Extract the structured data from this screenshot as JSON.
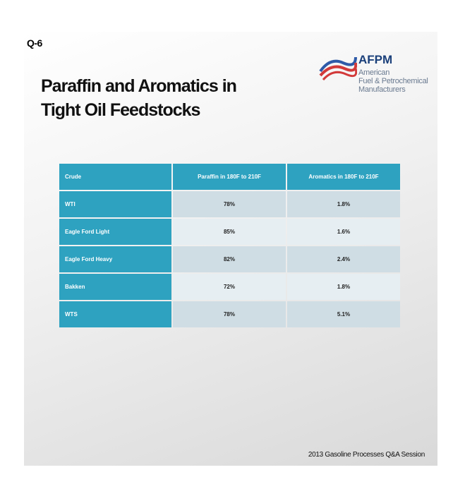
{
  "slide_label": "Q-6",
  "header": {
    "title_lines": [
      "Paraffin and Aromatics in",
      "Tight Oil Feedstocks"
    ]
  },
  "logo": {
    "name": "AFPM",
    "lines": [
      "American",
      "Fuel & Petrochemical",
      "Manufacturers"
    ]
  },
  "table": {
    "columns": [
      "Crude",
      "Paraffin in 180F to 210F",
      "Aromatics in 180F to 210F"
    ],
    "rows": [
      [
        "WTI",
        "78%",
        "1.8%"
      ],
      [
        "Eagle Ford Light",
        "85%",
        "1.6%"
      ],
      [
        "Eagle Ford Heavy",
        "82%",
        "2.4%"
      ],
      [
        "Bakken",
        "72%",
        "1.8%"
      ],
      [
        "WTS",
        "78%",
        "5.1%"
      ]
    ]
  },
  "footer": "2013 Gasoline Processes Q&A Session"
}
